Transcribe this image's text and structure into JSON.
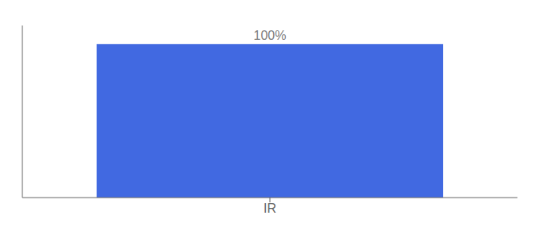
{
  "chart_data": {
    "type": "bar",
    "categories": [
      "IR"
    ],
    "values": [
      100
    ],
    "value_labels": [
      "100%"
    ],
    "data_labels": true,
    "color": "#4169e1",
    "ylim": [
      0,
      112
    ],
    "tick_labels": "x",
    "grid": false
  }
}
